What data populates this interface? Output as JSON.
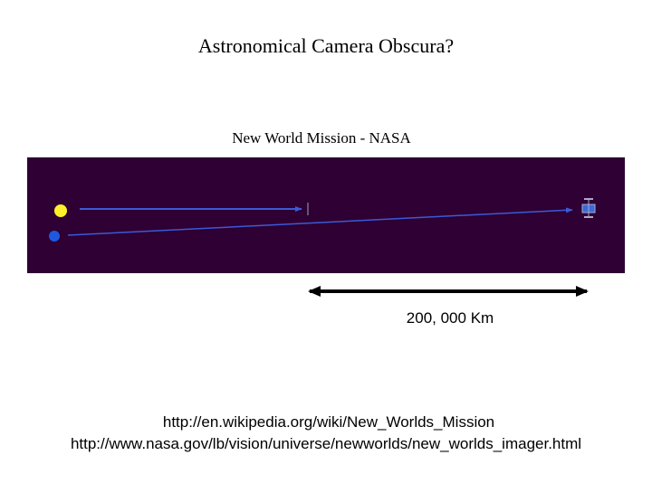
{
  "title": "Astronomical Camera Obscura?",
  "diagram": {
    "caption": "New World Mission - NASA",
    "scale_label": "200, 000 Km"
  },
  "links": [
    "http://en.wikipedia.org/wiki/New_Worlds_Mission",
    "http://www.nasa.gov/lb/vision/universe/newworlds/new_worlds_imager.html"
  ]
}
